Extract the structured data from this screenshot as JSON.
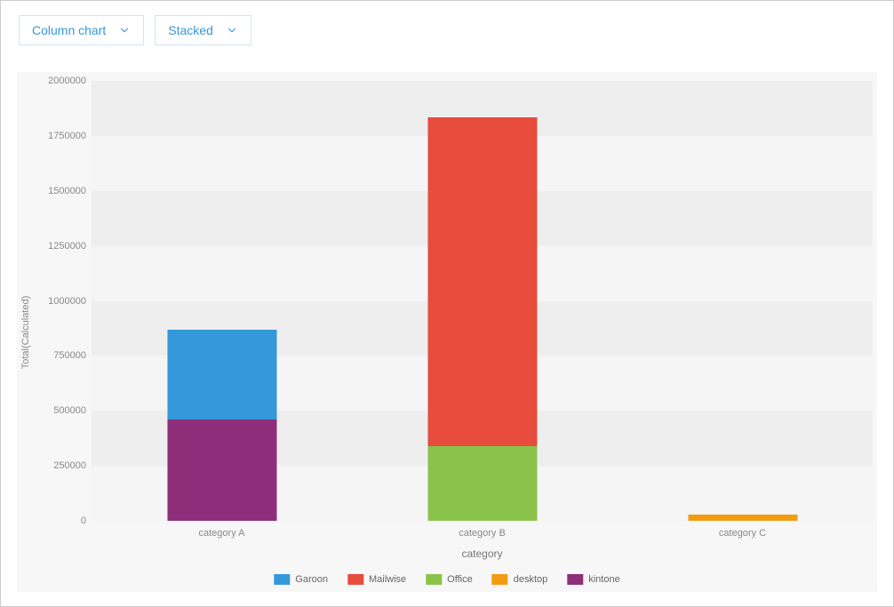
{
  "toolbar": {
    "chartType": {
      "label": "Column chart"
    },
    "stackMode": {
      "label": "Stacked"
    }
  },
  "chart": {
    "type": "bar",
    "stacked": true,
    "categories": [
      "category A",
      "category B",
      "category C"
    ],
    "series": [
      {
        "name": "Garoon",
        "color": "#3498db",
        "values": [
          410000,
          0,
          0
        ]
      },
      {
        "name": "Mailwise",
        "color": "#e74c3c",
        "values": [
          0,
          1495000,
          0
        ]
      },
      {
        "name": "Office",
        "color": "#8bc34a",
        "values": [
          0,
          340000,
          0
        ]
      },
      {
        "name": "desktop",
        "color": "#f39c12",
        "values": [
          0,
          0,
          30000
        ]
      },
      {
        "name": "kintone",
        "color": "#8e2e7a",
        "values": [
          460000,
          0,
          0
        ]
      }
    ],
    "stackOrder": [
      "kintone",
      "Garoon",
      "Office",
      "Mailwise",
      "desktop"
    ],
    "y": {
      "label": "Total(Calculated)",
      "min": 0,
      "max": 2000000,
      "tick_step": 250000,
      "tick_labels": [
        "0",
        "250000",
        "500000",
        "750000",
        "1000000",
        "1250000",
        "1500000",
        "1750000",
        "2000000"
      ]
    },
    "x": {
      "label": "category"
    },
    "style": {
      "bg_light": "#f5f5f6",
      "bg_band": "#eeeeee",
      "tick_color": "#888888",
      "bar_width_pct": 42
    }
  }
}
